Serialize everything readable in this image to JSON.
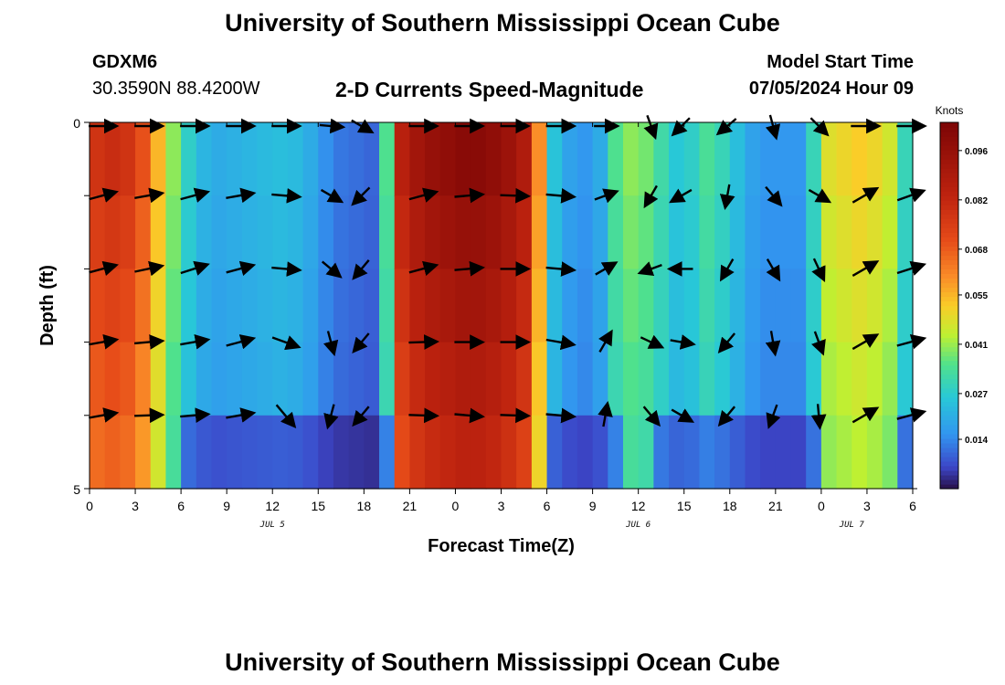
{
  "header": {
    "title": "University of Southern Mississippi Ocean Cube",
    "station_id": "GDXM6",
    "station_coords": "30.3590N  88.4200W",
    "chart_subtitle": "2-D Currents Speed-Magnitude",
    "model_start_label": "Model Start Time",
    "model_start_value": "07/05/2024 Hour 09"
  },
  "footer": {
    "title": "University of Southern Mississippi Ocean Cube"
  },
  "chart_data": {
    "type": "heatmap",
    "title": "2-D Currents Speed-Magnitude",
    "xlabel": "Forecast Time(Z)",
    "ylabel": "Depth (ft)",
    "xlim": [
      0,
      54
    ],
    "ylim": [
      0,
      5
    ],
    "x_tick_labels": [
      "0",
      "3",
      "6",
      "9",
      "12",
      "15",
      "18",
      "21",
      "0",
      "3",
      "6",
      "9",
      "12",
      "15",
      "18",
      "21",
      "0",
      "3",
      "6"
    ],
    "y_tick_labels": [
      "0",
      "5"
    ],
    "date_labels": [
      "JUL 5",
      "JUL 6",
      "JUL 7"
    ],
    "date_label_hours": [
      12,
      36,
      50
    ],
    "colorbar": {
      "label": "Knots",
      "min": 0.0,
      "max": 0.104,
      "tick_labels": [
        "0.096",
        "0.082",
        "0.068",
        "0.055",
        "0.041",
        "0.027",
        "0.014"
      ],
      "tick_values": [
        0.096,
        0.082,
        0.068,
        0.055,
        0.041,
        0.027,
        0.014
      ]
    },
    "depth_levels": [
      0,
      1,
      2,
      3,
      4,
      5
    ],
    "speed_hours": [
      0,
      1,
      2,
      3,
      4,
      5,
      6,
      7,
      8,
      9,
      10,
      11,
      12,
      13,
      14,
      15,
      16,
      17,
      18,
      19,
      20,
      21,
      22,
      23,
      24,
      25,
      26,
      27,
      28,
      29,
      30,
      31,
      32,
      33,
      34,
      35,
      36,
      37,
      38,
      39,
      40,
      41,
      42,
      43,
      44,
      45,
      46,
      47,
      48,
      49,
      50,
      51,
      52,
      53,
      54
    ],
    "speed_profile": [
      0.078,
      0.08,
      0.078,
      0.07,
      0.055,
      0.04,
      0.028,
      0.022,
      0.02,
      0.021,
      0.022,
      0.023,
      0.024,
      0.023,
      0.02,
      0.015,
      0.012,
      0.011,
      0.01,
      0.035,
      0.085,
      0.092,
      0.096,
      0.098,
      0.1,
      0.1,
      0.098,
      0.094,
      0.088,
      0.06,
      0.025,
      0.018,
      0.016,
      0.02,
      0.035,
      0.04,
      0.038,
      0.032,
      0.026,
      0.028,
      0.034,
      0.03,
      0.024,
      0.018,
      0.016,
      0.016,
      0.016,
      0.03,
      0.048,
      0.05,
      0.052,
      0.05,
      0.046,
      0.03,
      0.02
    ],
    "vectors": {
      "hours": [
        0,
        3,
        6,
        9,
        12,
        15,
        17,
        21,
        24,
        27,
        30,
        33,
        36,
        38,
        41,
        44,
        47,
        50,
        53
      ],
      "depth_rows": [
        {
          "depth": 0,
          "directions_deg": [
            90,
            90,
            90,
            90,
            90,
            95,
            120,
            90,
            90,
            90,
            90,
            90,
            160,
            225,
            230,
            165,
            135,
            90,
            90
          ]
        },
        {
          "depth": 1,
          "directions_deg": [
            75,
            80,
            75,
            80,
            95,
            120,
            225,
            75,
            85,
            92,
            95,
            70,
            210,
            240,
            190,
            140,
            120,
            60,
            70
          ]
        },
        {
          "depth": 2,
          "directions_deg": [
            75,
            78,
            72,
            75,
            95,
            130,
            220,
            75,
            85,
            90,
            95,
            60,
            250,
            270,
            210,
            150,
            155,
            60,
            72
          ]
        },
        {
          "depth": 3,
          "directions_deg": [
            80,
            85,
            80,
            75,
            110,
            165,
            220,
            88,
            90,
            90,
            100,
            30,
            115,
            100,
            220,
            170,
            160,
            60,
            75
          ]
        },
        {
          "depth": 4,
          "directions_deg": [
            80,
            88,
            85,
            80,
            140,
            195,
            220,
            92,
            95,
            92,
            95,
            10,
            140,
            120,
            220,
            200,
            175,
            60,
            75
          ]
        }
      ],
      "speeds": [
        0.06,
        0.06,
        0.06,
        0.06,
        0.06,
        0.05,
        0.05,
        0.06,
        0.06,
        0.06,
        0.06,
        0.05,
        0.05,
        0.05,
        0.05,
        0.05,
        0.05,
        0.06,
        0.06
      ]
    }
  }
}
